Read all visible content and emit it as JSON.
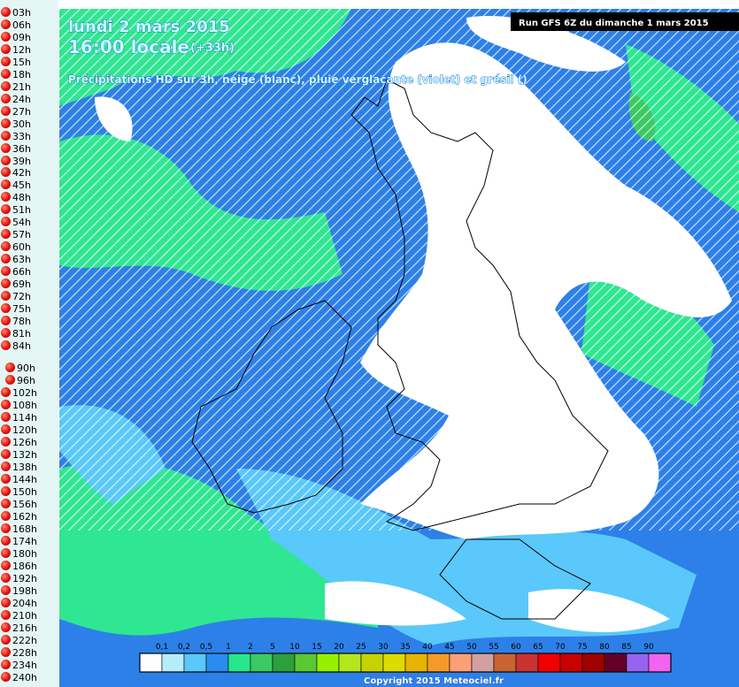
{
  "sidebar": {
    "links": [
      "03h",
      "06h",
      "09h",
      "12h",
      "15h",
      "18h",
      "21h",
      "24h",
      "27h",
      "30h",
      "33h",
      "36h",
      "39h",
      "42h",
      "45h",
      "48h",
      "51h",
      "54h",
      "57h",
      "60h",
      "63h",
      "66h",
      "69h",
      "72h",
      "75h",
      "78h",
      "81h",
      "84h",
      "90h",
      "96h",
      "102h",
      "108h",
      "114h",
      "120h",
      "126h",
      "132h",
      "138h",
      "144h",
      "150h",
      "156h",
      "162h",
      "168h",
      "174h",
      "180h",
      "186h",
      "192h",
      "198h",
      "204h",
      "210h",
      "216h",
      "222h",
      "228h",
      "234h",
      "240h"
    ]
  },
  "header": {
    "date": "lundi 2 mars 2015",
    "time": "16:00 locale",
    "offset": "(+33h)",
    "subtitle": "Précipitations HD sur 3h, neige (blanc), pluie verglaçante (violet) et grésil ()",
    "run": "Run GFS 6Z du dimanche 1 mars 2015"
  },
  "legend": {
    "labels": [
      "0,1",
      "0,2",
      "0,5",
      "1",
      "2",
      "5",
      "10",
      "15",
      "20",
      "25",
      "30",
      "35",
      "40",
      "45",
      "50",
      "55",
      "60",
      "65",
      "70",
      "75",
      "80",
      "85",
      "90"
    ],
    "colors": [
      "#ffffff",
      "#b4eefa",
      "#5ac8fa",
      "#2a8cf0",
      "#28e68c",
      "#3cc864",
      "#2ca03c",
      "#5ac832",
      "#96f000",
      "#b4e61e",
      "#c8d200",
      "#dcdc00",
      "#e6b400",
      "#f59a28",
      "#faa078",
      "#d2a0a0",
      "#c86432",
      "#c83232",
      "#f00000",
      "#c80000",
      "#a00000",
      "#640028",
      "#9664f0",
      "#f064f0"
    ]
  },
  "footer": {
    "copyright": "Copyright 2015 Meteociel.fr"
  }
}
